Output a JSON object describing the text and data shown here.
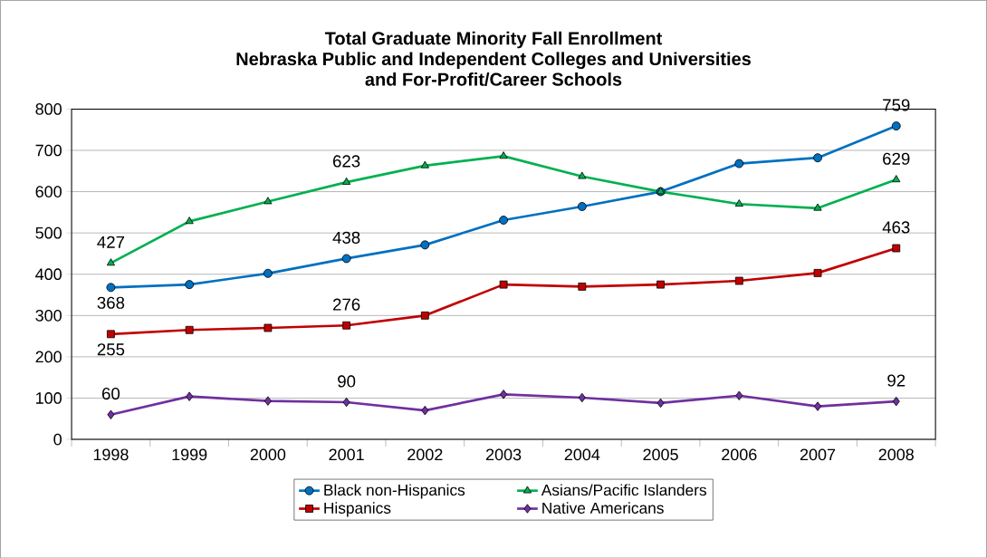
{
  "chart_data": {
    "type": "line",
    "title": "Total Graduate Minority Fall Enrollment\nNebraska Public and Independent Colleges and Universities\nand For-Profit/Career Schools",
    "categories": [
      "1998",
      "1999",
      "2000",
      "2001",
      "2002",
      "2003",
      "2004",
      "2005",
      "2006",
      "2007",
      "2008"
    ],
    "series": [
      {
        "name": "Black non-Hispanics",
        "color": "#0070c0",
        "marker": "circle",
        "values": [
          368,
          375,
          402,
          438,
          471,
          531,
          564,
          600,
          668,
          682,
          759
        ],
        "value_labels": [
          "368",
          null,
          null,
          "438",
          null,
          null,
          null,
          null,
          null,
          null,
          "759"
        ]
      },
      {
        "name": "Asians/Pacific Islanders",
        "color": "#00b050",
        "marker": "triangle",
        "values": [
          427,
          528,
          576,
          623,
          663,
          686,
          637,
          600,
          570,
          560,
          629
        ],
        "value_labels": [
          "427",
          null,
          null,
          "623",
          null,
          null,
          null,
          null,
          null,
          null,
          "629"
        ]
      },
      {
        "name": "Hispanics",
        "color": "#c00000",
        "marker": "square",
        "values": [
          255,
          265,
          270,
          276,
          300,
          375,
          370,
          375,
          384,
          403,
          463
        ],
        "value_labels": [
          "255",
          null,
          null,
          "276",
          null,
          null,
          null,
          null,
          null,
          null,
          "463"
        ]
      },
      {
        "name": "Native Americans",
        "color": "#7030a0",
        "marker": "diamond",
        "values": [
          60,
          104,
          93,
          90,
          70,
          109,
          101,
          88,
          106,
          80,
          92
        ],
        "value_labels": [
          "60",
          null,
          null,
          "90",
          null,
          null,
          null,
          null,
          null,
          null,
          "92"
        ]
      }
    ],
    "ylim": [
      0,
      800
    ],
    "yticks": [
      0,
      100,
      200,
      300,
      400,
      500,
      600,
      700,
      800
    ],
    "grid": "y",
    "legend": "bottom",
    "line_style": "solid"
  }
}
